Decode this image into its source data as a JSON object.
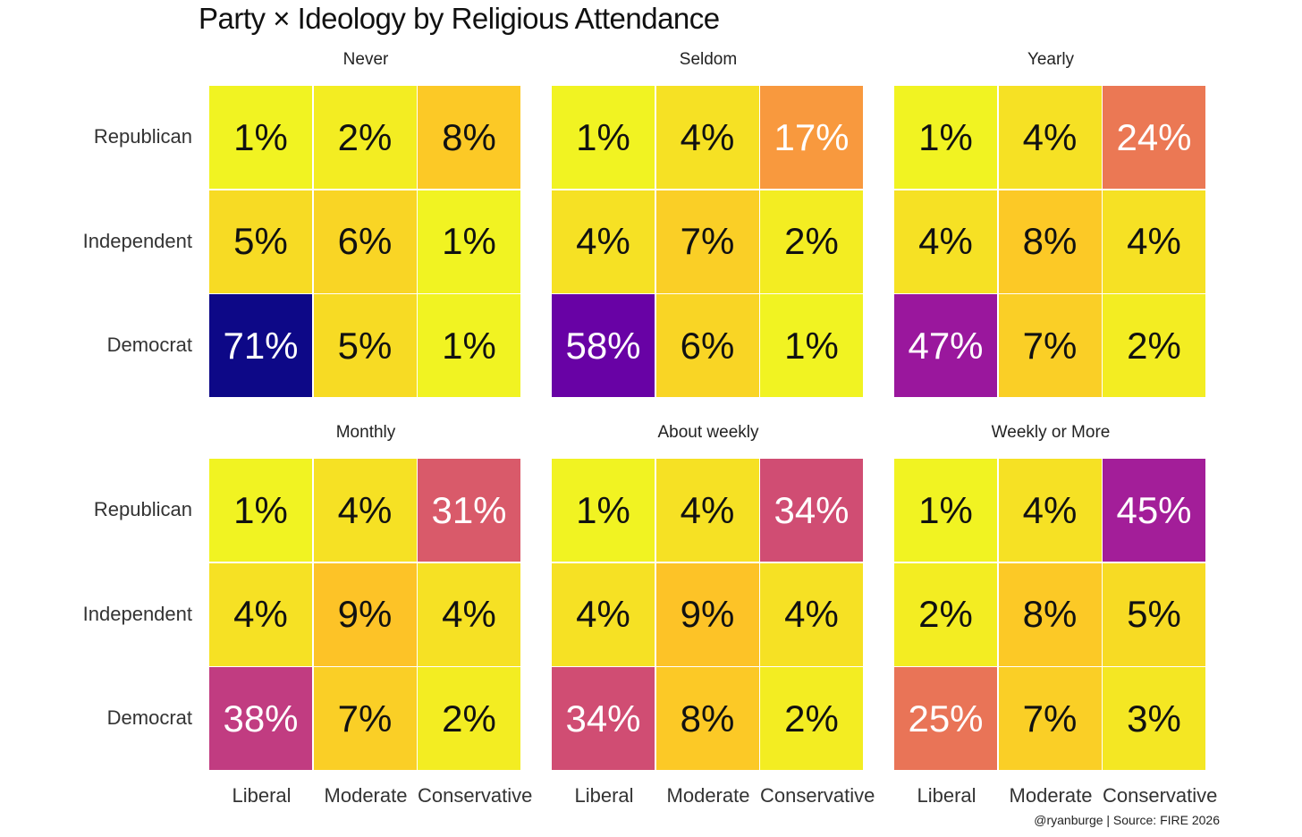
{
  "chart_data": {
    "type": "heatmap",
    "title": "Party × Ideology by Religious Attendance",
    "rows": [
      "Republican",
      "Independent",
      "Democrat"
    ],
    "columns": [
      "Liberal",
      "Moderate",
      "Conservative"
    ],
    "color_scale": "plasma (reversed): low = yellow, high = dark blue",
    "color_range": [
      0,
      71
    ],
    "panels": [
      {
        "name": "Never",
        "values": [
          [
            1,
            2,
            8
          ],
          [
            5,
            6,
            1
          ],
          [
            71,
            5,
            1
          ]
        ]
      },
      {
        "name": "Seldom",
        "values": [
          [
            1,
            4,
            17
          ],
          [
            4,
            7,
            2
          ],
          [
            58,
            6,
            1
          ]
        ]
      },
      {
        "name": "Yearly",
        "values": [
          [
            1,
            4,
            24
          ],
          [
            4,
            8,
            4
          ],
          [
            47,
            7,
            2
          ]
        ]
      },
      {
        "name": "Monthly",
        "values": [
          [
            1,
            4,
            31
          ],
          [
            4,
            9,
            4
          ],
          [
            38,
            7,
            2
          ]
        ]
      },
      {
        "name": "About weekly",
        "values": [
          [
            1,
            4,
            34
          ],
          [
            4,
            9,
            4
          ],
          [
            34,
            8,
            2
          ]
        ]
      },
      {
        "name": "Weekly or More",
        "values": [
          [
            1,
            4,
            45
          ],
          [
            2,
            8,
            5
          ],
          [
            25,
            7,
            3
          ]
        ]
      }
    ],
    "caption": "@ryanburge | Source: FIRE 2026"
  }
}
